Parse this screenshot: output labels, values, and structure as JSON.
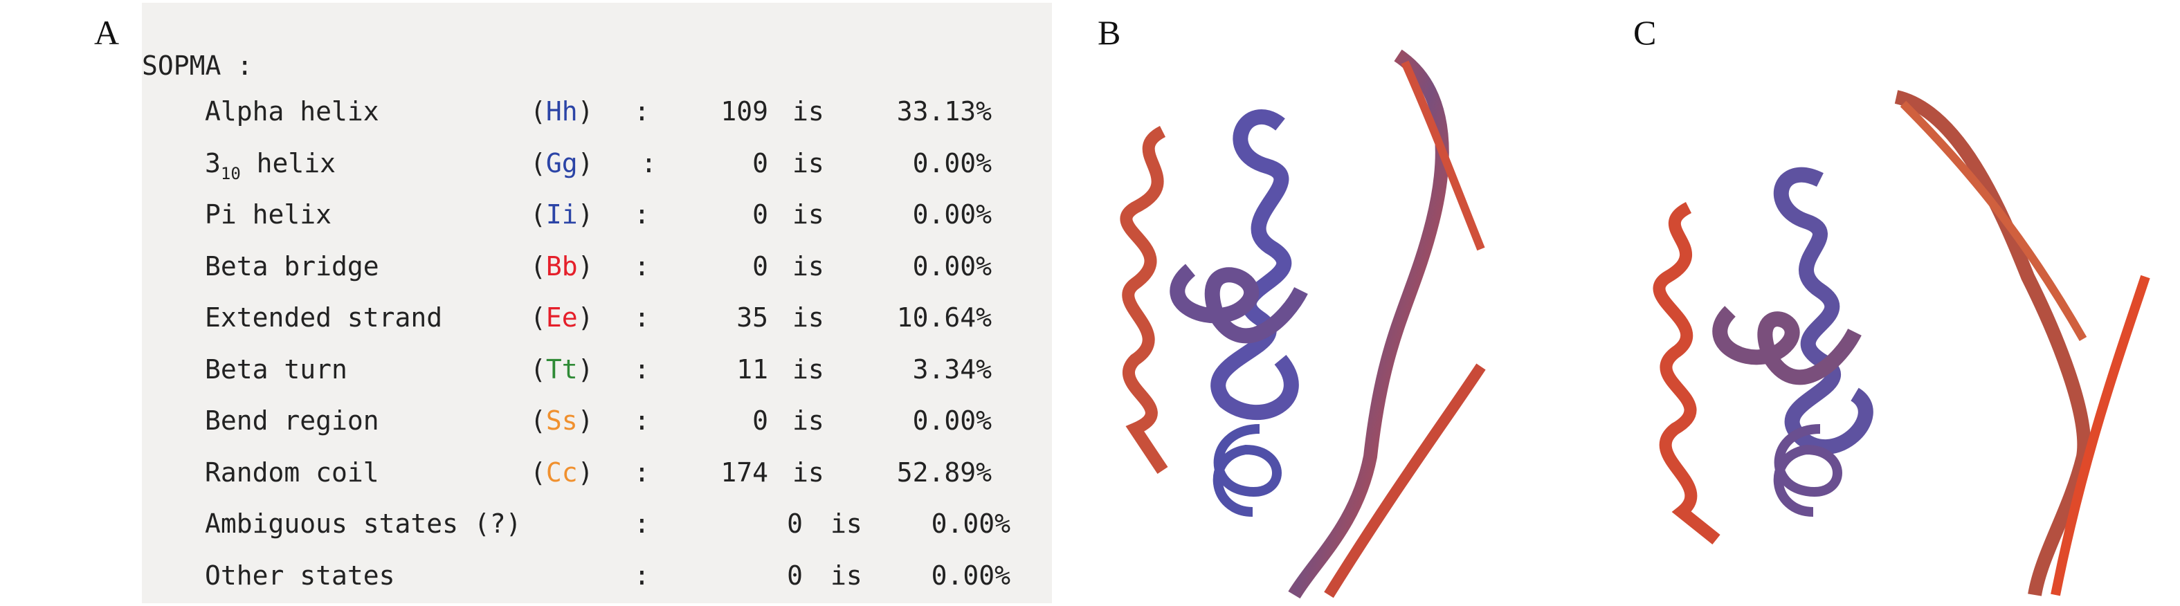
{
  "panels": {
    "a": "A",
    "b": "B",
    "c": "C"
  },
  "sopma": {
    "title": "SOPMA :",
    "rows": [
      {
        "label": "Alpha helix",
        "code": "Hh",
        "code_color": "#2b44a6",
        "count": "109",
        "is": "is",
        "percent": "33.13%"
      },
      {
        "label": "3",
        "label_sub": "10",
        "label_rest": " helix",
        "code": "Gg",
        "code_color": "#2b44a6",
        "count": "0",
        "is": "is",
        "percent": "0.00%"
      },
      {
        "label": "Pi helix",
        "code": "Ii",
        "code_color": "#2b44a6",
        "count": "0",
        "is": "is",
        "percent": "0.00%"
      },
      {
        "label": "Beta bridge",
        "code": "Bb",
        "code_color": "#e51f2a",
        "count": "0",
        "is": "is",
        "percent": "0.00%"
      },
      {
        "label": "Extended strand",
        "code": "Ee",
        "code_color": "#e51f2a",
        "count": "35",
        "is": "is",
        "percent": "10.64%"
      },
      {
        "label": "Beta turn",
        "code": "Tt",
        "code_color": "#2f8a36",
        "count": "11",
        "is": "is",
        "percent": "3.34%"
      },
      {
        "label": "Bend region",
        "code": "Ss",
        "code_color": "#f0902e",
        "count": "0",
        "is": "is",
        "percent": "0.00%"
      },
      {
        "label": "Random coil",
        "code": "Cc",
        "code_color": "#f0902e",
        "count": "174",
        "is": "is",
        "percent": "52.89%"
      },
      {
        "label": "Ambiguous states (?)",
        "code": "",
        "count": "0",
        "is": "is",
        "percent": "0.00%",
        "shifted": true
      },
      {
        "label": "Other states",
        "code": "",
        "count": "0",
        "is": "is",
        "percent": "0.00%",
        "shifted": true
      }
    ]
  },
  "colors": {
    "helix_blue": "#4a55b0",
    "coil_red": "#e8482a",
    "mid_purple": "#7a4f7c"
  }
}
